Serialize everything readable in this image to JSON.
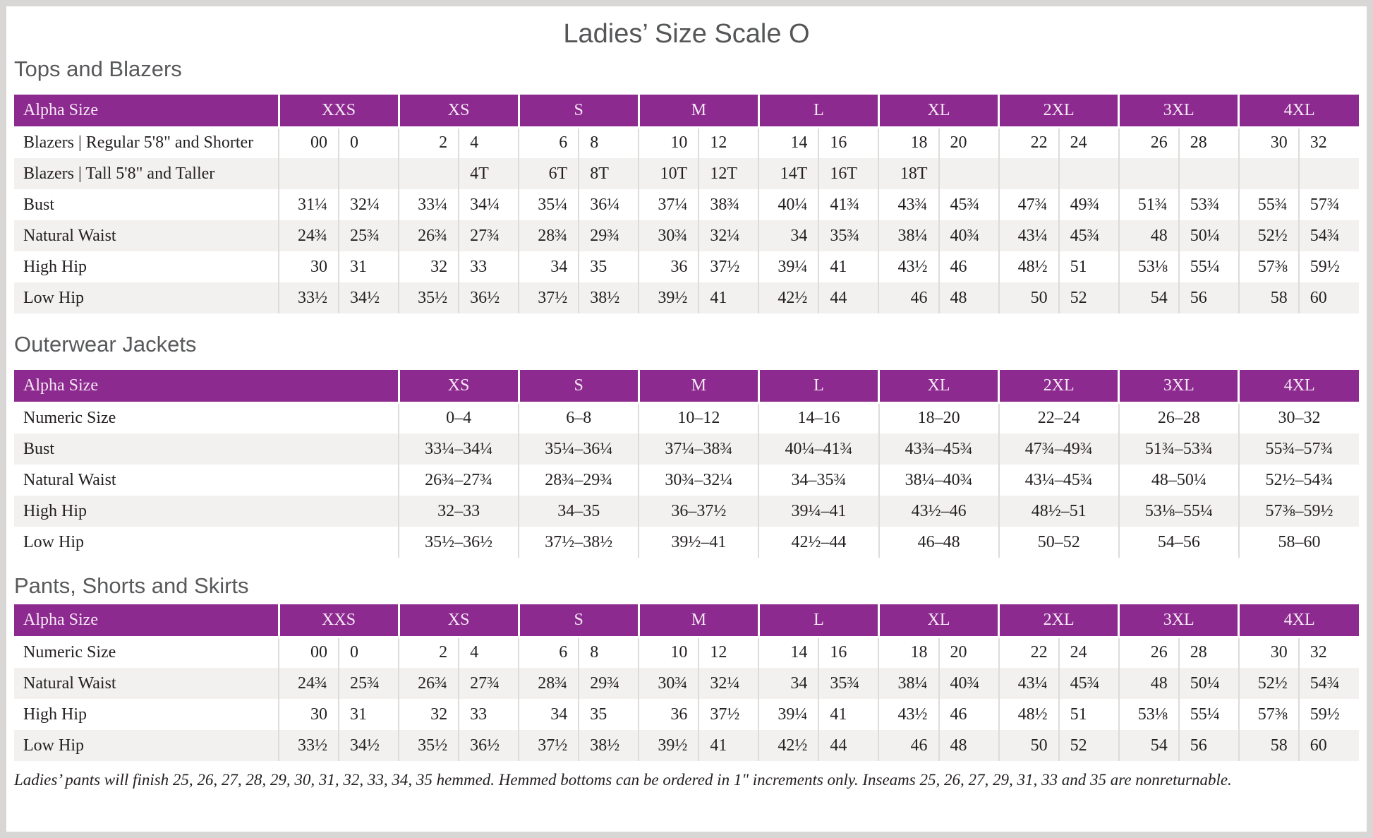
{
  "page": {
    "title": "Ladies’ Size Scale O",
    "footnote": "Ladies’ pants will finish 25, 26, 27, 28, 29, 30, 31, 32, 33, 34, 35 hemmed. Hemmed bottoms can be ordered in 1\" increments only. Inseams 25, 26, 27, 29, 31, 33 and 35 are nonreturnable."
  },
  "colors": {
    "header_bg": "#8C2A8F",
    "header_text": "#F6E8F5",
    "row_alt": "#F2F1EF",
    "grid_line": "#DEDCD9",
    "heading_text": "#58595B",
    "body_text": "#231F20",
    "page_border": "#D8D7D6"
  },
  "tables": {
    "tops": {
      "heading": "Tops and Blazers",
      "corner_label": "Alpha Size",
      "sizes": [
        "XXS",
        "XS",
        "S",
        "M",
        "L",
        "XL",
        "2XL",
        "3XL",
        "4XL"
      ],
      "rows": [
        {
          "label": "Blazers | Regular 5'8\" and Shorter",
          "values": [
            [
              "00",
              "0"
            ],
            [
              "2",
              "4"
            ],
            [
              "6",
              "8"
            ],
            [
              "10",
              "12"
            ],
            [
              "14",
              "16"
            ],
            [
              "18",
              "20"
            ],
            [
              "22",
              "24"
            ],
            [
              "26",
              "28"
            ],
            [
              "30",
              "32"
            ]
          ]
        },
        {
          "label": "Blazers | Tall 5'8\" and Taller",
          "values": [
            [
              "",
              ""
            ],
            [
              "",
              "4T"
            ],
            [
              "6T",
              "8T"
            ],
            [
              "10T",
              "12T"
            ],
            [
              "14T",
              "16T"
            ],
            [
              "18T",
              ""
            ],
            [
              "",
              ""
            ],
            [
              "",
              ""
            ],
            [
              "",
              ""
            ]
          ]
        },
        {
          "label": "Bust",
          "values": [
            [
              "31¼",
              "32¼"
            ],
            [
              "33¼",
              "34¼"
            ],
            [
              "35¼",
              "36¼"
            ],
            [
              "37¼",
              "38¾"
            ],
            [
              "40¼",
              "41¾"
            ],
            [
              "43¾",
              "45¾"
            ],
            [
              "47¾",
              "49¾"
            ],
            [
              "51¾",
              "53¾"
            ],
            [
              "55¾",
              "57¾"
            ]
          ]
        },
        {
          "label": "Natural Waist",
          "values": [
            [
              "24¾",
              "25¾"
            ],
            [
              "26¾",
              "27¾"
            ],
            [
              "28¾",
              "29¾"
            ],
            [
              "30¾",
              "32¼"
            ],
            [
              "34",
              "35¾"
            ],
            [
              "38¼",
              "40¾"
            ],
            [
              "43¼",
              "45¾"
            ],
            [
              "48",
              "50¼"
            ],
            [
              "52½",
              "54¾"
            ]
          ]
        },
        {
          "label": "High Hip",
          "values": [
            [
              "30",
              "31"
            ],
            [
              "32",
              "33"
            ],
            [
              "34",
              "35"
            ],
            [
              "36",
              "37½"
            ],
            [
              "39¼",
              "41"
            ],
            [
              "43½",
              "46"
            ],
            [
              "48½",
              "51"
            ],
            [
              "53⅛",
              "55¼"
            ],
            [
              "57⅜",
              "59½"
            ]
          ]
        },
        {
          "label": "Low Hip",
          "values": [
            [
              "33½",
              "34½"
            ],
            [
              "35½",
              "36½"
            ],
            [
              "37½",
              "38½"
            ],
            [
              "39½",
              "41"
            ],
            [
              "42½",
              "44"
            ],
            [
              "46",
              "48"
            ],
            [
              "50",
              "52"
            ],
            [
              "54",
              "56"
            ],
            [
              "58",
              "60"
            ]
          ]
        }
      ]
    },
    "outerwear": {
      "heading": "Outerwear Jackets",
      "corner_label": "Alpha Size",
      "sizes": [
        "XS",
        "S",
        "M",
        "L",
        "XL",
        "2XL",
        "3XL",
        "4XL"
      ],
      "rows": [
        {
          "label": "Numeric Size",
          "values": [
            "0–4",
            "6–8",
            "10–12",
            "14–16",
            "18–20",
            "22–24",
            "26–28",
            "30–32"
          ]
        },
        {
          "label": "Bust",
          "values": [
            "33¼–34¼",
            "35¼–36¼",
            "37¼–38¾",
            "40¼–41¾",
            "43¾–45¾",
            "47¾–49¾",
            "51¾–53¾",
            "55¾–57¾"
          ]
        },
        {
          "label": "Natural Waist",
          "values": [
            "26¾–27¾",
            "28¾–29¾",
            "30¾–32¼",
            "34–35¾",
            "38¼–40¾",
            "43¼–45¾",
            "48–50¼",
            "52½–54¾"
          ]
        },
        {
          "label": "High Hip",
          "values": [
            "32–33",
            "34–35",
            "36–37½",
            "39¼–41",
            "43½–46",
            "48½–51",
            "53⅛–55¼",
            "57⅜–59½"
          ]
        },
        {
          "label": "Low Hip",
          "values": [
            "35½–36½",
            "37½–38½",
            "39½–41",
            "42½–44",
            "46–48",
            "50–52",
            "54–56",
            "58–60"
          ]
        }
      ]
    },
    "pants": {
      "heading": "Pants, Shorts and Skirts",
      "corner_label": "Alpha Size",
      "sizes": [
        "XXS",
        "XS",
        "S",
        "M",
        "L",
        "XL",
        "2XL",
        "3XL",
        "4XL"
      ],
      "rows": [
        {
          "label": "Numeric Size",
          "values": [
            [
              "00",
              "0"
            ],
            [
              "2",
              "4"
            ],
            [
              "6",
              "8"
            ],
            [
              "10",
              "12"
            ],
            [
              "14",
              "16"
            ],
            [
              "18",
              "20"
            ],
            [
              "22",
              "24"
            ],
            [
              "26",
              "28"
            ],
            [
              "30",
              "32"
            ]
          ]
        },
        {
          "label": "Natural Waist",
          "values": [
            [
              "24¾",
              "25¾"
            ],
            [
              "26¾",
              "27¾"
            ],
            [
              "28¾",
              "29¾"
            ],
            [
              "30¾",
              "32¼"
            ],
            [
              "34",
              "35¾"
            ],
            [
              "38¼",
              "40¾"
            ],
            [
              "43¼",
              "45¾"
            ],
            [
              "48",
              "50¼"
            ],
            [
              "52½",
              "54¾"
            ]
          ]
        },
        {
          "label": "High Hip",
          "values": [
            [
              "30",
              "31"
            ],
            [
              "32",
              "33"
            ],
            [
              "34",
              "35"
            ],
            [
              "36",
              "37½"
            ],
            [
              "39¼",
              "41"
            ],
            [
              "43½",
              "46"
            ],
            [
              "48½",
              "51"
            ],
            [
              "53⅛",
              "55¼"
            ],
            [
              "57⅜",
              "59½"
            ]
          ]
        },
        {
          "label": "Low Hip",
          "values": [
            [
              "33½",
              "34½"
            ],
            [
              "35½",
              "36½"
            ],
            [
              "37½",
              "38½"
            ],
            [
              "39½",
              "41"
            ],
            [
              "42½",
              "44"
            ],
            [
              "46",
              "48"
            ],
            [
              "50",
              "52"
            ],
            [
              "54",
              "56"
            ],
            [
              "58",
              "60"
            ]
          ]
        }
      ]
    }
  }
}
